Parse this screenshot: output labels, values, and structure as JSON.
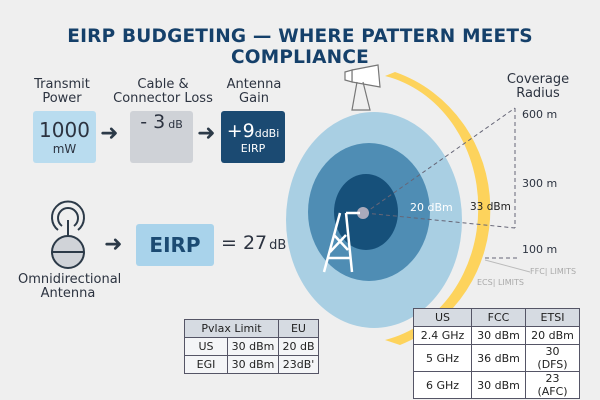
{
  "title": "EIRP BUDGETING — WHERE PATTERN MEETS COMPLIANCE",
  "chain": [
    {
      "label_1": "Transmit",
      "label_2": "Power",
      "value": "1000",
      "unit": "mW"
    },
    {
      "label_1": "Cable &",
      "label_2": "Connector Loss",
      "value": "- 3",
      "unit": "dB"
    },
    {
      "label_1": "Antenna",
      "label_2": "Gain",
      "value": "+9",
      "unit": "ddBi",
      "sub": "EIRP"
    }
  ],
  "antenna": {
    "label_1": "Omnidirectional",
    "label_2": "Antenna",
    "eirp": "EIRP",
    "result": "= 27",
    "result_unit": "dB"
  },
  "coverage": {
    "title_1": "Coverage",
    "title_2": "Radius",
    "radii": [
      "600 m",
      "300 m",
      "100 m"
    ],
    "inner_label": "20 dBm",
    "outer_label": "33 dBm",
    "fcc": "FFC| LIMITS",
    "etsi": "ECS| LIMITS"
  },
  "colors": {
    "outer": "#a9cfe3",
    "middle": "#4f8db4",
    "inner": "#16507a",
    "yellow": "#fdd35c",
    "navy": "#1b4a72"
  },
  "table_left": {
    "header": [
      "Pvlax Limit",
      "EU"
    ],
    "rows": [
      [
        "US",
        "30 dBm",
        "20 dB"
      ],
      [
        "EGI",
        "30 dBm",
        "23dB'"
      ]
    ]
  },
  "table_right": {
    "header": [
      "US",
      "FCC",
      "ETSI"
    ],
    "rows": [
      [
        "2.4 GHz",
        "30 dBm",
        "20 dBm"
      ],
      [
        "5 GHz",
        "36 dBm",
        "30 (DFS)"
      ],
      [
        "6 GHz",
        "30 dBm",
        "23 (AFC)"
      ]
    ]
  }
}
